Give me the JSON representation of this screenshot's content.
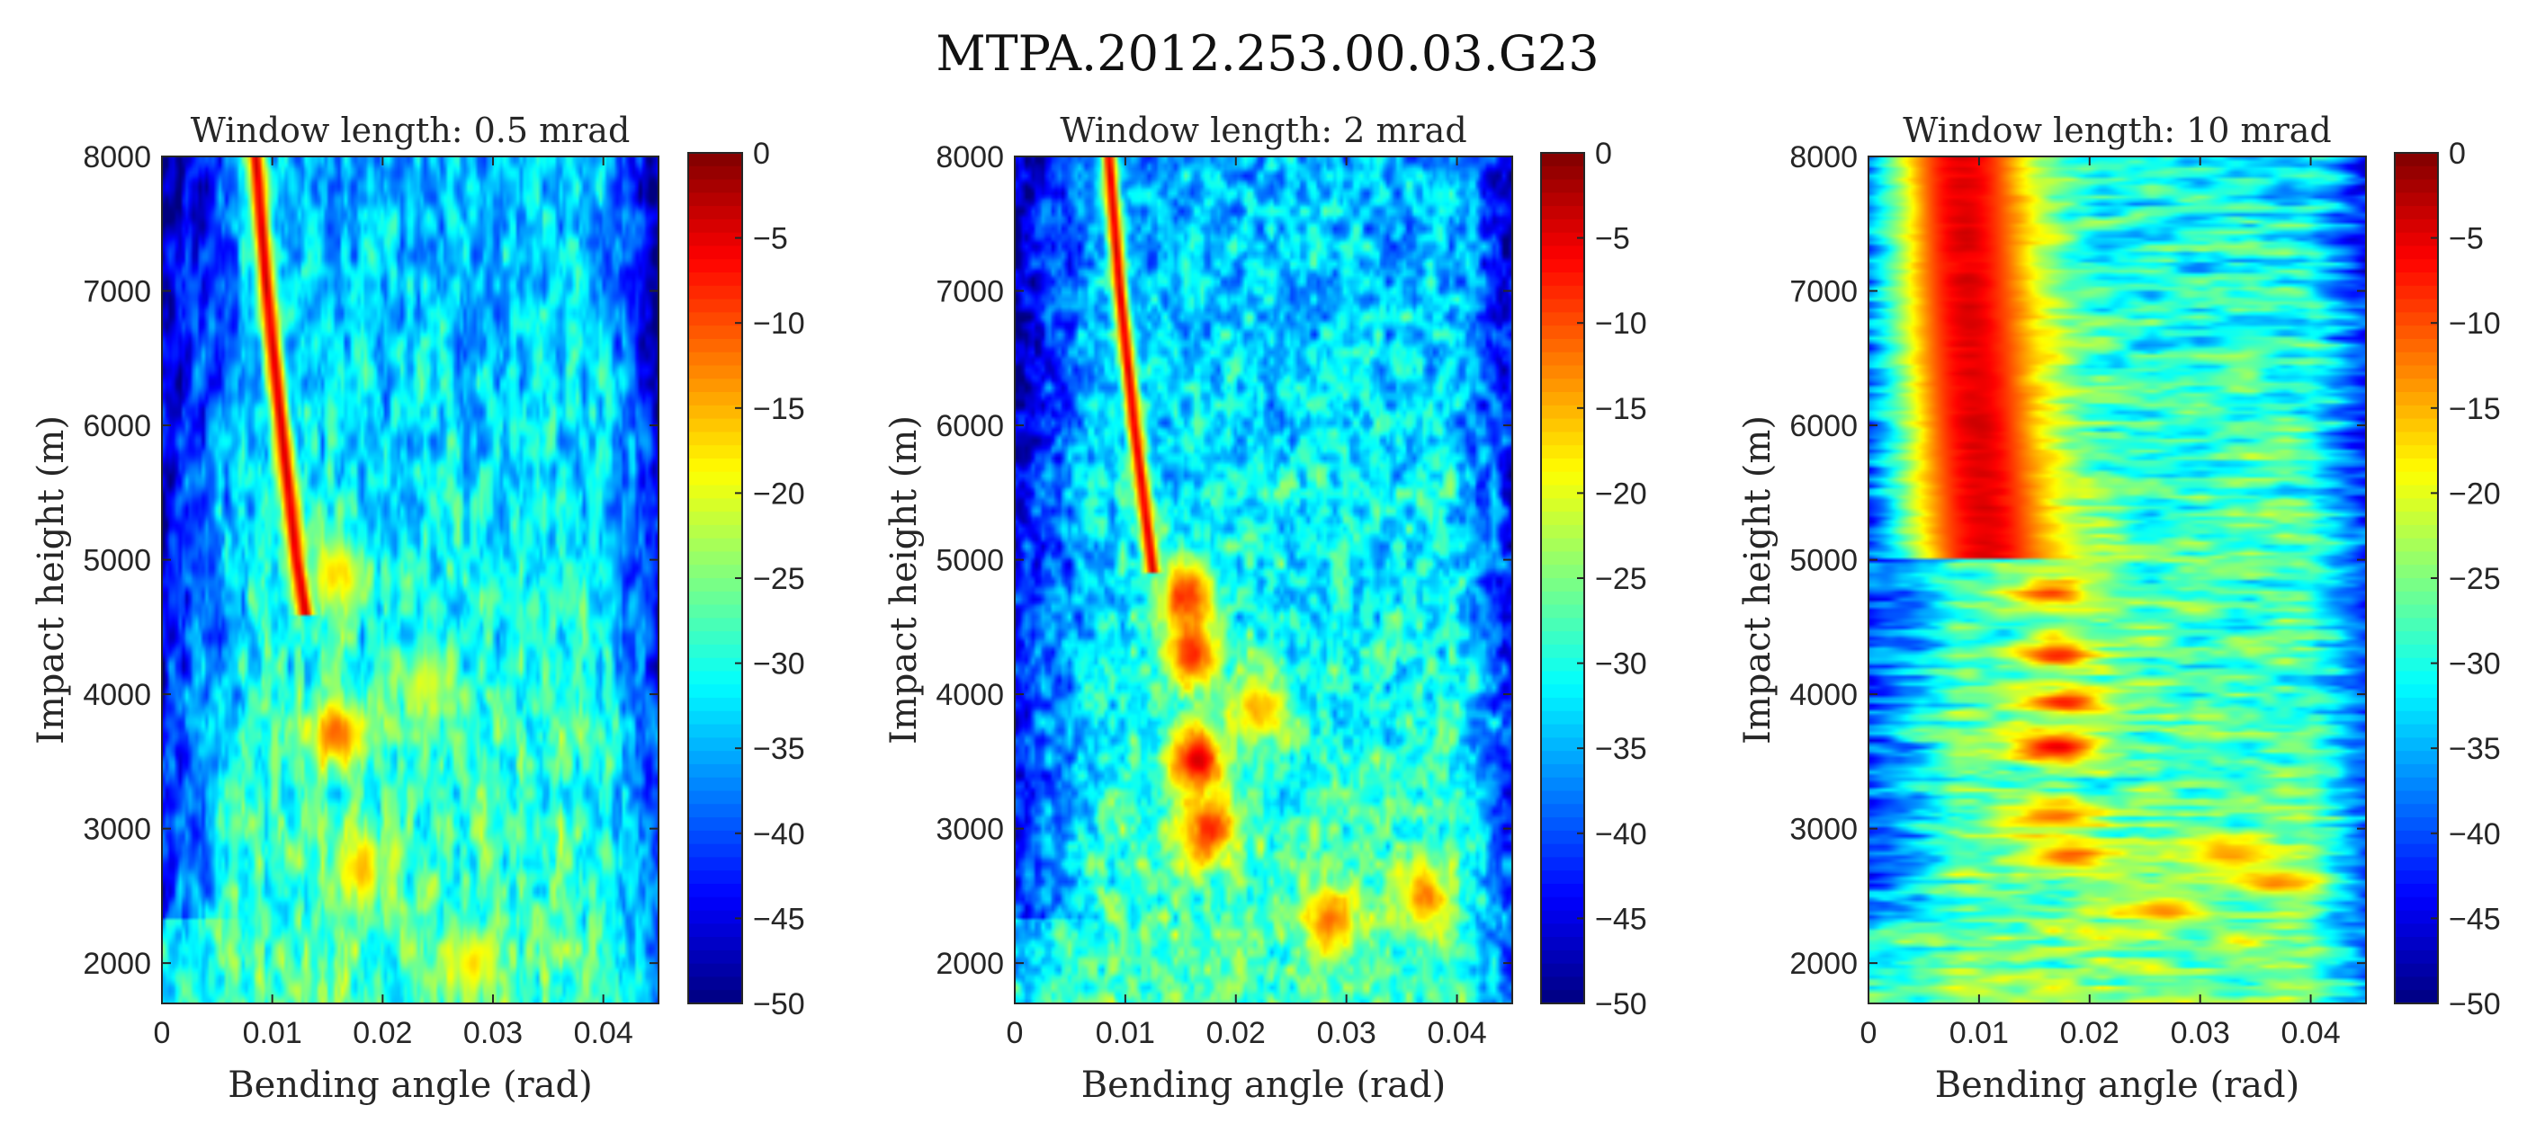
{
  "figure_title": "MTPA.2012.253.00.03.G23",
  "chart_data": [
    {
      "type": "heatmap",
      "title": "Window length: 0.5 mrad",
      "xlabel": "Bending angle (rad)",
      "ylabel": "Impact height (m)",
      "xlim": [
        0,
        0.045
      ],
      "ylim": [
        1700,
        8000
      ],
      "xticks": [
        "0",
        "0.01",
        "0.02",
        "0.03",
        "0.04"
      ],
      "yticks": [
        "2000",
        "3000",
        "4000",
        "5000",
        "6000",
        "7000",
        "8000"
      ],
      "colorbar": {
        "range": [
          -50,
          0
        ],
        "ticks": [
          "0",
          "−5",
          "−10",
          "−15",
          "−20",
          "−25",
          "−30",
          "−35",
          "−40",
          "−45",
          "−50"
        ],
        "colormap": "jet"
      },
      "ridge": {
        "points": [
          [
            0.0085,
            8000
          ],
          [
            0.0095,
            7000
          ],
          [
            0.0108,
            6000
          ],
          [
            0.0122,
            5000
          ],
          [
            0.013,
            4600
          ]
        ],
        "width_rad": 0.0012
      },
      "hotspots": [
        {
          "x": 0.016,
          "y": 3700,
          "value": -8
        },
        {
          "x": 0.016,
          "y": 4900,
          "value": -15
        },
        {
          "x": 0.018,
          "y": 2700,
          "value": -14
        },
        {
          "x": 0.024,
          "y": 4100,
          "value": -18
        },
        {
          "x": 0.028,
          "y": 2000,
          "value": -15
        }
      ],
      "noise_level": -30,
      "valid_edge_x": 0.045
    },
    {
      "type": "heatmap",
      "title": "Window length: 2 mrad",
      "xlabel": "Bending angle (rad)",
      "ylabel": "Impact height (m)",
      "xlim": [
        0,
        0.045
      ],
      "ylim": [
        1700,
        8000
      ],
      "xticks": [
        "0",
        "0.01",
        "0.02",
        "0.03",
        "0.04"
      ],
      "yticks": [
        "2000",
        "3000",
        "4000",
        "5000",
        "6000",
        "7000",
        "8000"
      ],
      "colorbar": {
        "range": [
          -50,
          0
        ],
        "ticks": [
          "0",
          "−5",
          "−10",
          "−15",
          "−20",
          "−25",
          "−30",
          "−35",
          "−40",
          "−45",
          "−50"
        ],
        "colormap": "jet"
      },
      "ridge": {
        "points": [
          [
            0.0085,
            8000
          ],
          [
            0.0095,
            7000
          ],
          [
            0.0108,
            6000
          ],
          [
            0.0125,
            4900
          ]
        ],
        "width_rad": 0.001
      },
      "hotspots": [
        {
          "x": 0.0155,
          "y": 4750,
          "value": -5
        },
        {
          "x": 0.016,
          "y": 4300,
          "value": -6
        },
        {
          "x": 0.0165,
          "y": 3500,
          "value": -3
        },
        {
          "x": 0.0175,
          "y": 3000,
          "value": -6
        },
        {
          "x": 0.022,
          "y": 3900,
          "value": -12
        },
        {
          "x": 0.0285,
          "y": 2300,
          "value": -10
        },
        {
          "x": 0.037,
          "y": 2500,
          "value": -10
        }
      ],
      "noise_level": -30,
      "valid_edge_x": 0.045
    },
    {
      "type": "heatmap",
      "title": "Window length: 10 mrad",
      "xlabel": "Bending angle (rad)",
      "ylabel": "Impact height (m)",
      "xlim": [
        0,
        0.045
      ],
      "ylim": [
        1700,
        8000
      ],
      "xticks": [
        "0",
        "0.01",
        "0.02",
        "0.03",
        "0.04"
      ],
      "yticks": [
        "2000",
        "3000",
        "4000",
        "5000",
        "6000",
        "7000",
        "8000"
      ],
      "colorbar": {
        "range": [
          -50,
          0
        ],
        "ticks": [
          "0",
          "−5",
          "−10",
          "−15",
          "−20",
          "−25",
          "−30",
          "−35",
          "−40",
          "−45",
          "−50"
        ],
        "colormap": "jet"
      },
      "ridge": {
        "points": [
          [
            0.0085,
            8000
          ],
          [
            0.009,
            7000
          ],
          [
            0.0098,
            6000
          ],
          [
            0.0108,
            5000
          ]
        ],
        "width_rad": 0.0075
      },
      "hotspots": [
        {
          "x": 0.0165,
          "y": 4750,
          "value": -8
        },
        {
          "x": 0.017,
          "y": 4300,
          "value": -6
        },
        {
          "x": 0.018,
          "y": 3950,
          "value": -6
        },
        {
          "x": 0.017,
          "y": 3600,
          "value": -2
        },
        {
          "x": 0.017,
          "y": 3100,
          "value": -8
        },
        {
          "x": 0.018,
          "y": 2800,
          "value": -7
        },
        {
          "x": 0.027,
          "y": 2400,
          "value": -10
        },
        {
          "x": 0.037,
          "y": 2600,
          "value": -9
        },
        {
          "x": 0.033,
          "y": 2800,
          "value": -12
        }
      ],
      "noise_level": -28,
      "valid_edge_x": 0.045
    }
  ]
}
